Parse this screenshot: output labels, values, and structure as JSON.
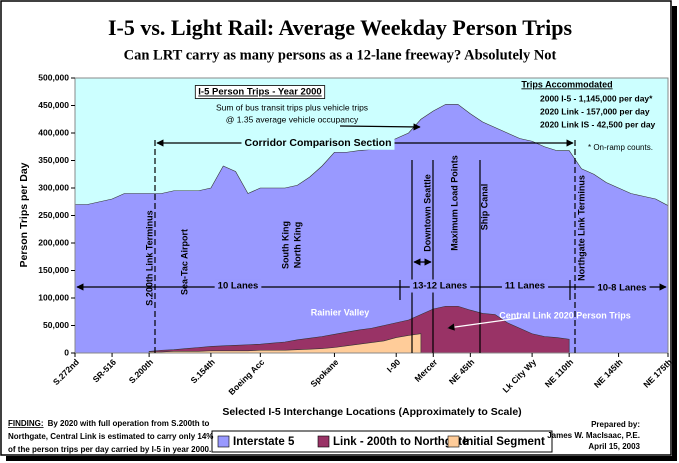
{
  "chart_data": {
    "type": "area",
    "title": "I-5 vs. Light Rail: Average Weekday Person Trips",
    "subtitle": "Can LRT carry as many persons as a 12-lane freeway?  Absolutely Not",
    "y_label": "Person Trips per Day",
    "x_label": "Selected I-5 Interchange Locations  (Approximately to Scale)",
    "categories": [
      "S.272nd",
      null,
      null,
      "SR-516",
      null,
      null,
      "S.200th",
      null,
      null,
      null,
      null,
      "S.154th",
      null,
      null,
      null,
      "Boeing Acc",
      null,
      null,
      null,
      null,
      null,
      "Spokane",
      null,
      null,
      null,
      null,
      "I-90",
      null,
      null,
      "Mercer",
      null,
      null,
      "NE 45th",
      null,
      null,
      null,
      null,
      "Lk City Wy",
      null,
      null,
      "NE 110th",
      null,
      null,
      null,
      "NE 145th",
      null,
      null,
      null,
      "NE 175th"
    ],
    "series": [
      {
        "name": "Interstate 5",
        "color": "#9999ff",
        "values": [
          270000,
          270000,
          275000,
          280000,
          290000,
          290000,
          290000,
          290000,
          295000,
          295000,
          295000,
          300000,
          340000,
          330000,
          290000,
          300000,
          300000,
          300000,
          305000,
          320000,
          340000,
          365000,
          365000,
          368000,
          370000,
          380000,
          390000,
          400000,
          425000,
          440000,
          452000,
          452000,
          435000,
          420000,
          410000,
          400000,
          390000,
          385000,
          375000,
          368000,
          368000,
          335000,
          325000,
          310000,
          300000,
          290000,
          285000,
          280000,
          268000
        ]
      },
      {
        "name": "Link - 200th to Northgate",
        "color": "#993366",
        "values": [
          null,
          null,
          null,
          null,
          null,
          null,
          3000,
          5000,
          6000,
          8000,
          10000,
          12000,
          13000,
          14000,
          15000,
          16000,
          18000,
          20000,
          24000,
          27000,
          30000,
          34000,
          38000,
          42000,
          45000,
          50000,
          55000,
          60000,
          70000,
          80000,
          85000,
          85000,
          78000,
          72000,
          70000,
          55000,
          45000,
          35000,
          30000,
          28000,
          25000,
          null,
          null,
          null,
          null,
          null,
          null,
          null,
          null
        ]
      },
      {
        "name": "Initial Segment",
        "color": "#ffcc99",
        "values": [
          null,
          null,
          null,
          null,
          null,
          null,
          2000,
          2000,
          3000,
          3000,
          3000,
          4000,
          4000,
          4000,
          4000,
          5000,
          5000,
          5000,
          6000,
          7000,
          8000,
          10000,
          13000,
          16000,
          19000,
          22000,
          28000,
          32000,
          35000,
          null,
          null,
          null,
          null,
          null,
          null,
          null,
          null,
          null,
          null,
          null,
          null,
          null,
          null,
          null,
          null,
          null,
          null,
          null,
          null
        ]
      }
    ],
    "ylim": [
      0,
      500000
    ],
    "yticks": [
      0,
      {
        "value": 50000,
        "label": "50,000"
      },
      {
        "value": 100000,
        "label": "100,000"
      },
      {
        "value": 150000,
        "label": "150,000"
      },
      {
        "value": 200000,
        "label": "200,000"
      },
      {
        "value": 250000,
        "label": "250,000"
      },
      {
        "value": 300000,
        "label": "300,000"
      },
      {
        "value": 350000,
        "label": "350,000"
      },
      {
        "value": 400000,
        "label": "400,000"
      },
      {
        "value": 450000,
        "label": "450,000"
      },
      {
        "value": 500000,
        "label": "500,000"
      }
    ],
    "grid": false,
    "background": "#ccffff",
    "legend": "bottom",
    "annotations": [
      "I-5 Person Trips - Year 2000",
      "Sum of bus transit trips plus vehicle trips",
      "@ 1.35 average vehicle occupancy",
      "Corridor Comparison Section",
      "Trips Accommodated",
      "2000 I-5 - 1,145,000 per day*",
      "2020 Link - 157,000 per day",
      "2020 Link IS - 42,500 per day",
      "* On-ramp counts.",
      "S.200th Link Terminus",
      "Sea-Tac Airport",
      "South King",
      "North King",
      "Downtown Seattle",
      "Maximum Load Points",
      "Ship Canal",
      "Northgate Link Terminus",
      "10 Lanes",
      "13-12 Lanes",
      "11 Lanes",
      "10-8 Lanes",
      "Rainier Valley",
      "Central Link 2020 Person Trips"
    ],
    "finding_label": "FINDING:",
    "finding": [
      "By 2020 with full operation from S.200th to",
      "Northgate, Central Link is estimated to carry only 14%",
      "of the person trips per day carried by I-5 in year 2000."
    ],
    "prepared": [
      "Prepared by:",
      "James W. MacIsaac, P.E.",
      "April 15, 2003"
    ]
  }
}
